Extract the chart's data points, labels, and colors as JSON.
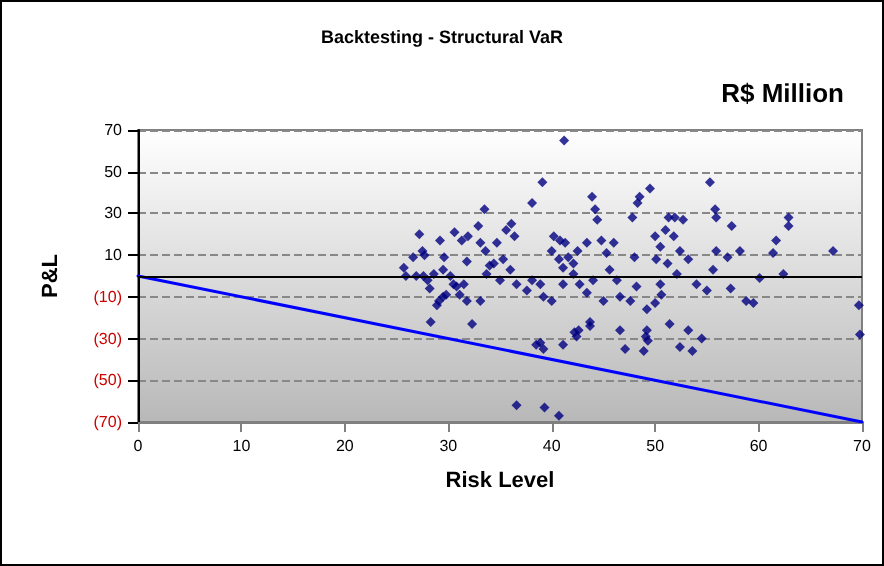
{
  "chart_data": {
    "type": "scatter",
    "title": "Backtesting - Structural VaR",
    "subtitle": "R$ Million",
    "xlabel": "Risk Level",
    "ylabel": "P&L",
    "xlim": [
      0,
      70
    ],
    "xticks": [
      0,
      10,
      20,
      30,
      40,
      50,
      60,
      70
    ],
    "ylim": [
      -70,
      70
    ],
    "yticks": [
      {
        "value": -70,
        "label": "(70)"
      },
      {
        "value": -50,
        "label": "(50)"
      },
      {
        "value": -30,
        "label": "(30)"
      },
      {
        "value": -10,
        "label": "(10)"
      },
      10,
      30,
      50,
      70
    ],
    "grid": "y",
    "ref_lines": [
      {
        "axis": "y",
        "value": 0,
        "color": "#000000"
      }
    ],
    "series": [
      {
        "marker": "diamond",
        "color": "#000080",
        "x": [
          25.7,
          25.9,
          26.6,
          27.2,
          27.5,
          27.7,
          26.9,
          27.6,
          28.0,
          28.2,
          28.6,
          28.9,
          29.1,
          29.5,
          29.8,
          28.3,
          29.2,
          29.6,
          29.5,
          30.5,
          30.8,
          31.1,
          31.8,
          33.1,
          32.3,
          30.6,
          31.3,
          31.9,
          31.8,
          32.9,
          33.5,
          33.1,
          33.6,
          33.7,
          34.0,
          34.4,
          34.7,
          31.5,
          30.2,
          41.2,
          39.1,
          38.1,
          36.1,
          35.6,
          36.4,
          35.3,
          36.0,
          35.0,
          36.6,
          37.6,
          38.1,
          38.9,
          39.2,
          40.0,
          41.1,
          40.2,
          40.8,
          41.3,
          40.0,
          40.7,
          41.6,
          41.1,
          42.1,
          42.5,
          42.1,
          42.7,
          43.4,
          44.0,
          43.9,
          44.2,
          44.4,
          43.4,
          44.8,
          45.3,
          46.0,
          45.6,
          46.3,
          45.0,
          46.6,
          47.6,
          48.0,
          48.2,
          48.3,
          48.5,
          49.5,
          47.8,
          50.0,
          50.5,
          50.1,
          51.0,
          51.3,
          51.9,
          51.8,
          52.4,
          52.7,
          51.2,
          53.2,
          52.1,
          50.5,
          50.0,
          50.6,
          49.2,
          54.0,
          55.0,
          55.3,
          55.8,
          55.9,
          55.9,
          55.6,
          57.4,
          57.0,
          58.2,
          57.3,
          58.8,
          59.5,
          60.1,
          61.4,
          61.7,
          62.4,
          62.9,
          62.9,
          67.2,
          69.7,
          69.8,
          38.9,
          41.1,
          42.2,
          43.7,
          46.6,
          49.1,
          52.4,
          38.5,
          39.2,
          42.4,
          42.6,
          43.7,
          49.2,
          47.1,
          48.9,
          49.3,
          51.4,
          53.2,
          53.6,
          54.5,
          36.6,
          39.3,
          40.7
        ],
        "values": [
          4,
          0,
          9,
          20,
          12,
          10,
          0,
          0,
          -2,
          -6,
          1,
          -14,
          -12,
          -10,
          -9,
          -22,
          17,
          9,
          3,
          -4,
          -5,
          -9,
          -12,
          -12,
          -23,
          21,
          17,
          19,
          7,
          24,
          32,
          16,
          12,
          1,
          5,
          6,
          16,
          -4,
          0,
          65,
          45,
          35,
          25,
          22,
          19,
          8,
          3,
          -2,
          -4,
          -7,
          -2,
          -4,
          -10,
          -12,
          -4,
          19,
          17,
          16,
          12,
          8,
          9,
          4,
          6,
          12,
          1,
          -4,
          -8,
          -2,
          38,
          32,
          27,
          16,
          17,
          11,
          16,
          3,
          -2,
          -12,
          -10,
          -12,
          9,
          -5,
          35,
          38,
          42,
          28,
          19,
          14,
          8,
          22,
          28,
          28,
          19,
          12,
          27,
          6,
          8,
          1,
          -4,
          -13,
          -9,
          -16,
          -4,
          -7,
          45,
          32,
          28,
          12,
          3,
          24,
          9,
          12,
          -6,
          -12,
          -13,
          -1,
          11,
          17,
          1,
          28,
          24,
          12,
          -14,
          -28,
          -32,
          -33,
          -27,
          -22,
          -26,
          -29,
          -34,
          -33,
          -35,
          -29,
          -26,
          -24,
          -26,
          -35,
          -36,
          -31,
          -23,
          -26,
          -36,
          -30,
          -62,
          -63,
          -67
        ]
      },
      {
        "type": "line",
        "marker": "none",
        "color": "#0000ff",
        "x": [
          0,
          70
        ],
        "values": [
          0,
          -70
        ]
      }
    ]
  }
}
